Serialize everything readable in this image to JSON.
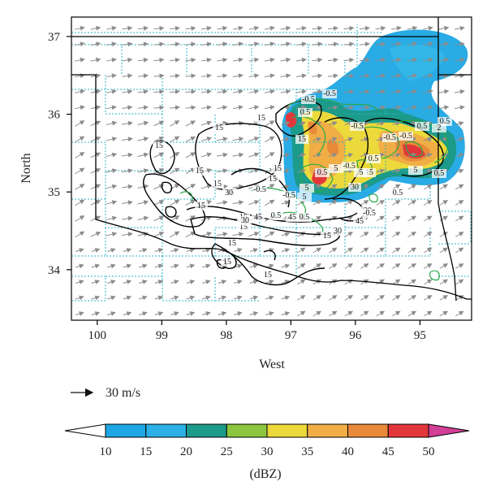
{
  "chart_data": {
    "type": "contour-map",
    "xlabel": "West",
    "ylabel": "North",
    "xlim": [
      100.4,
      94.2
    ],
    "ylim": [
      33.35,
      37.25
    ],
    "x_ticks": [
      100,
      99,
      98,
      97,
      96,
      95
    ],
    "y_ticks": [
      34,
      35,
      36,
      37
    ],
    "wind_reference": {
      "label": "30 m/s",
      "value": 30
    },
    "colorbar": {
      "label": "(dBZ)",
      "ticks": [
        10,
        15,
        20,
        25,
        30,
        35,
        40,
        45,
        50
      ],
      "colors": [
        "#ffffff",
        "#1ea7e4",
        "#2ab0e6",
        "#1c9a8a",
        "#8cc63e",
        "#ecd93b",
        "#f0ae45",
        "#e88a3a",
        "#e2373a",
        "#d23f97"
      ]
    },
    "contour_labels_black": [
      "15",
      "15",
      "15",
      "15",
      "15",
      "15",
      "15",
      "15",
      "15",
      "15",
      "15",
      "15",
      "15",
      "30",
      "30",
      "30",
      "30",
      "30",
      "45",
      "45",
      "45",
      "15",
      "15",
      "15",
      "15"
    ],
    "contour_labels_green": [
      "-0.5",
      "-0.5",
      "-0.5",
      "-0.5",
      "-0.5",
      "-0.5",
      "-0.5",
      "-0.5",
      "-0.5",
      "0.5",
      "0.5",
      "0.5",
      "0.5",
      "0.5",
      "0.5",
      "0.5",
      "0.5",
      "0.5",
      "2",
      "5",
      "5",
      "5",
      "5",
      "5"
    ]
  }
}
